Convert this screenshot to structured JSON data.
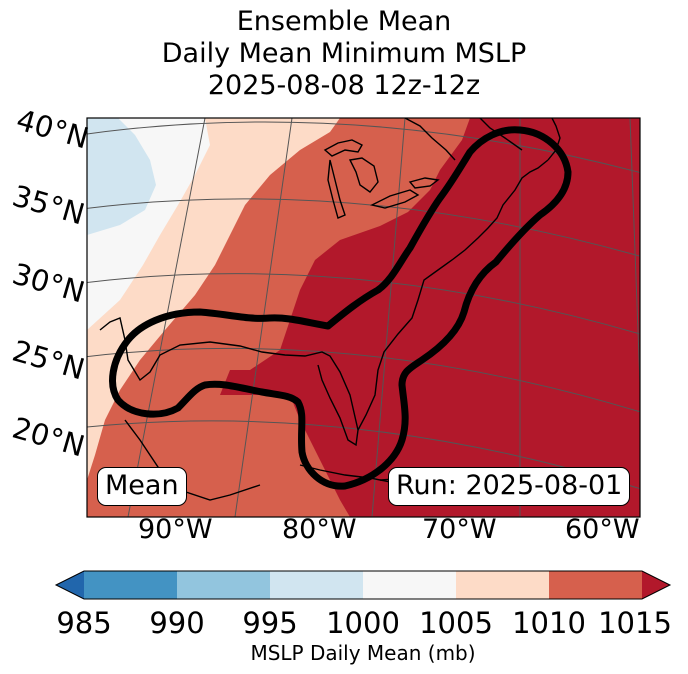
{
  "title": {
    "line1": "Ensemble Mean",
    "line2": "Daily Mean Minimum MSLP",
    "line3": "2025-08-08 12z-12z"
  },
  "map": {
    "latitude_labels": [
      "40°N",
      "35°N",
      "30°N",
      "25°N",
      "20°N"
    ],
    "longitude_labels": [
      "90°W",
      "80°W",
      "70°W",
      "60°W"
    ],
    "mean_label": "Mean",
    "run_label": "Run: 2025-08-01",
    "contour_color": "#000000",
    "icons": [
      "coastline-icon",
      "contour-outline-icon"
    ]
  },
  "colorbar": {
    "label": "MSLP Daily Mean (mb)",
    "ticks": [
      "985",
      "990",
      "995",
      "1000",
      "1005",
      "1010",
      "1015"
    ],
    "colors": [
      "#2166ac",
      "#4393c3",
      "#92c5de",
      "#d1e5f0",
      "#f7f7f7",
      "#fddbc7",
      "#d6604d",
      "#b2182b"
    ]
  }
}
